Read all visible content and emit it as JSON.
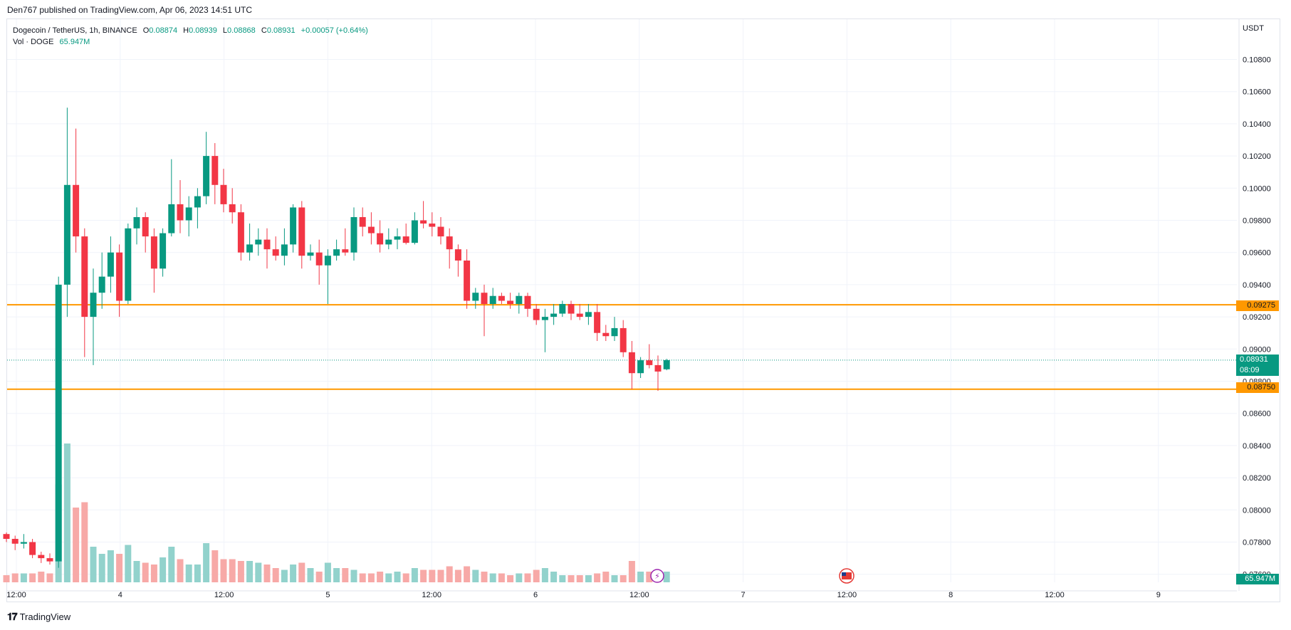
{
  "header": {
    "published": "Den767 published on TradingView.com, Apr 06, 2023 14:51 UTC"
  },
  "legend": {
    "symbol": "Dogecoin / TetherUS, 1h, BINANCE",
    "o_label": "O",
    "o": "0.08874",
    "h_label": "H",
    "h": "0.08939",
    "l_label": "L",
    "l": "0.08868",
    "c_label": "C",
    "c": "0.08931",
    "change": "+0.00057 (+0.64%)",
    "vol_label": "Vol · DOGE",
    "vol": "65.947M"
  },
  "axis": {
    "currency": "USDT",
    "y_ticks": [
      "0.10800",
      "0.10600",
      "0.10400",
      "0.10200",
      "0.10000",
      "0.09800",
      "0.09600",
      "0.09400",
      "0.09200",
      "0.09000",
      "0.08800",
      "0.08600",
      "0.08400",
      "0.08200",
      "0.08000",
      "0.07800",
      "0.07600"
    ],
    "x_ticks": [
      "12:00",
      "4",
      "12:00",
      "5",
      "12:00",
      "6",
      "12:00",
      "7",
      "12:00",
      "8",
      "12:00",
      "9"
    ]
  },
  "badges": {
    "level_upper": "0.09275",
    "price": "0.08931",
    "countdown": "08:09",
    "level_lower": "0.08750",
    "volume": "65.947M"
  },
  "colors": {
    "up": "#089981",
    "down": "#f23645",
    "up_vol": "#92d2cc",
    "down_vol": "#f7a9a7",
    "level": "#ff9800",
    "text": "#131722"
  },
  "footer": {
    "brand": "TradingView"
  },
  "chart_data": {
    "type": "candlestick",
    "symbol": "Dogecoin / TetherUS",
    "interval": "1h",
    "exchange": "BINANCE",
    "y_range": [
      0.0755,
      0.1105
    ],
    "horizontal_levels": [
      0.09275,
      0.0875
    ],
    "last_price": 0.08931,
    "candles": [
      [
        0.0785,
        0.0786,
        0.078,
        0.0782
      ],
      [
        0.0782,
        0.0784,
        0.0775,
        0.0779
      ],
      [
        0.0779,
        0.0785,
        0.0776,
        0.078
      ],
      [
        0.078,
        0.0782,
        0.077,
        0.0772
      ],
      [
        0.0772,
        0.0774,
        0.0767,
        0.077
      ],
      [
        0.077,
        0.0773,
        0.0766,
        0.0768
      ],
      [
        0.0768,
        0.0945,
        0.0764,
        0.094
      ],
      [
        0.094,
        0.105,
        0.092,
        0.1002
      ],
      [
        0.1002,
        0.1037,
        0.096,
        0.097
      ],
      [
        0.097,
        0.0975,
        0.0895,
        0.092
      ],
      [
        0.092,
        0.095,
        0.089,
        0.0935
      ],
      [
        0.0935,
        0.096,
        0.0925,
        0.0945
      ],
      [
        0.0945,
        0.097,
        0.0935,
        0.096
      ],
      [
        0.096,
        0.0965,
        0.092,
        0.093
      ],
      [
        0.093,
        0.0978,
        0.0928,
        0.0975
      ],
      [
        0.0975,
        0.0988,
        0.0965,
        0.0982
      ],
      [
        0.0982,
        0.0985,
        0.096,
        0.097
      ],
      [
        0.097,
        0.0975,
        0.0935,
        0.095
      ],
      [
        0.095,
        0.0975,
        0.0945,
        0.0972
      ],
      [
        0.0972,
        0.1018,
        0.097,
        0.099
      ],
      [
        0.099,
        0.1005,
        0.0972,
        0.098
      ],
      [
        0.098,
        0.0995,
        0.097,
        0.0988
      ],
      [
        0.0988,
        0.1,
        0.0975,
        0.0995
      ],
      [
        0.0995,
        0.1035,
        0.099,
        0.102
      ],
      [
        0.102,
        0.1028,
        0.099,
        0.1002
      ],
      [
        0.1002,
        0.1012,
        0.0985,
        0.099
      ],
      [
        0.099,
        0.1,
        0.0978,
        0.0985
      ],
      [
        0.0985,
        0.099,
        0.0955,
        0.096
      ],
      [
        0.096,
        0.0978,
        0.0955,
        0.0965
      ],
      [
        0.0965,
        0.0975,
        0.0958,
        0.0968
      ],
      [
        0.0968,
        0.0975,
        0.095,
        0.0962
      ],
      [
        0.0962,
        0.097,
        0.0955,
        0.0958
      ],
      [
        0.0958,
        0.0975,
        0.0952,
        0.0965
      ],
      [
        0.0965,
        0.099,
        0.096,
        0.0988
      ],
      [
        0.0988,
        0.0992,
        0.095,
        0.0958
      ],
      [
        0.0958,
        0.0965,
        0.0955,
        0.096
      ],
      [
        0.096,
        0.0968,
        0.094,
        0.0952
      ],
      [
        0.0952,
        0.0962,
        0.0928,
        0.0958
      ],
      [
        0.0958,
        0.0968,
        0.0955,
        0.0962
      ],
      [
        0.0962,
        0.0975,
        0.0958,
        0.096
      ],
      [
        0.096,
        0.0988,
        0.0955,
        0.0982
      ],
      [
        0.0982,
        0.0988,
        0.097,
        0.0976
      ],
      [
        0.0976,
        0.0985,
        0.0965,
        0.0972
      ],
      [
        0.0972,
        0.098,
        0.096,
        0.0965
      ],
      [
        0.0965,
        0.0975,
        0.0962,
        0.0968
      ],
      [
        0.0968,
        0.0975,
        0.0962,
        0.097
      ],
      [
        0.097,
        0.0978,
        0.0965,
        0.0966
      ],
      [
        0.0966,
        0.0985,
        0.0965,
        0.098
      ],
      [
        0.098,
        0.0992,
        0.0975,
        0.0978
      ],
      [
        0.0978,
        0.0985,
        0.097,
        0.0976
      ],
      [
        0.0976,
        0.0982,
        0.0965,
        0.097
      ],
      [
        0.097,
        0.0975,
        0.095,
        0.0962
      ],
      [
        0.0962,
        0.0965,
        0.0945,
        0.0955
      ],
      [
        0.0955,
        0.0962,
        0.0925,
        0.093
      ],
      [
        0.093,
        0.0938,
        0.0925,
        0.0935
      ],
      [
        0.0935,
        0.094,
        0.0908,
        0.0928
      ],
      [
        0.0928,
        0.0938,
        0.0925,
        0.0933
      ],
      [
        0.0933,
        0.0935,
        0.0928,
        0.093
      ],
      [
        0.093,
        0.0935,
        0.0925,
        0.0928
      ],
      [
        0.0928,
        0.0935,
        0.0922,
        0.0933
      ],
      [
        0.0933,
        0.0935,
        0.092,
        0.0925
      ],
      [
        0.0925,
        0.0928,
        0.0915,
        0.0918
      ],
      [
        0.0918,
        0.0925,
        0.0898,
        0.092
      ],
      [
        0.092,
        0.0928,
        0.0915,
        0.0922
      ],
      [
        0.0922,
        0.093,
        0.092,
        0.0928
      ],
      [
        0.0928,
        0.093,
        0.0918,
        0.0922
      ],
      [
        0.0922,
        0.0928,
        0.0918,
        0.092
      ],
      [
        0.092,
        0.0928,
        0.0915,
        0.0923
      ],
      [
        0.0923,
        0.0928,
        0.0905,
        0.091
      ],
      [
        0.091,
        0.0915,
        0.0905,
        0.0908
      ],
      [
        0.0908,
        0.092,
        0.0905,
        0.0913
      ],
      [
        0.0913,
        0.0918,
        0.0895,
        0.0898
      ],
      [
        0.0898,
        0.0905,
        0.0875,
        0.0885
      ],
      [
        0.0885,
        0.0895,
        0.0882,
        0.0893
      ],
      [
        0.0893,
        0.0903,
        0.0888,
        0.089
      ],
      [
        0.089,
        0.0896,
        0.0874,
        0.0886
      ],
      [
        0.08874,
        0.08939,
        0.08868,
        0.08931
      ]
    ],
    "volumes": [
      4.0,
      5.0,
      5.0,
      5.0,
      6.0,
      5.0,
      55.0,
      78.0,
      42.0,
      45.0,
      20.0,
      16.0,
      18.0,
      16.0,
      21.0,
      12.0,
      11.0,
      10.0,
      14.0,
      20.0,
      13.0,
      10.0,
      10.0,
      22.0,
      18.0,
      13.0,
      13.0,
      12.0,
      12.0,
      11.0,
      10.0,
      8.0,
      7.0,
      10.0,
      11.0,
      8.0,
      6.0,
      11.0,
      8.0,
      8.0,
      7.0,
      5.0,
      5.0,
      6.0,
      5.0,
      6.0,
      5.0,
      8.0,
      7.0,
      7.0,
      7.0,
      9.0,
      7.0,
      9.0,
      7.0,
      6.0,
      5.0,
      5.0,
      4.0,
      5.0,
      5.0,
      7.0,
      8.0,
      6.0,
      4.0,
      4.0,
      4.0,
      4.0,
      5.0,
      6.0,
      4.0,
      4.0,
      12.0,
      6.0,
      6.0,
      6.0,
      6.0
    ]
  }
}
